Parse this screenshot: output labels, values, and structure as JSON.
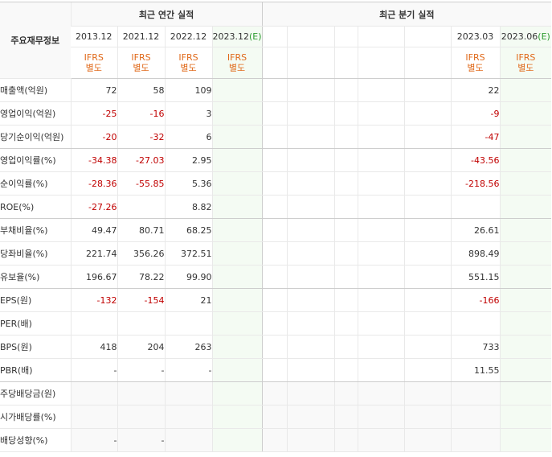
{
  "table": {
    "item_header": "주요재무정보",
    "annual_header": "최근 연간 실적",
    "quarter_header": "최근 분기 실적",
    "annual_dates": [
      "2013.12",
      "2021.12",
      "2022.12",
      "2023.12"
    ],
    "estimate_mark": "(E)",
    "quarter_dates": [
      "",
      "",
      "",
      "",
      "",
      "2023.03",
      "2023.06"
    ],
    "ifrs_line1": "IFRS",
    "ifrs_line2": "별도",
    "rows": [
      {
        "label": "매출액(억원)",
        "annual": [
          "72",
          "58",
          "109",
          ""
        ],
        "quarter": [
          "",
          "",
          "",
          "",
          "",
          "22",
          ""
        ]
      },
      {
        "label": "영업이익(억원)",
        "annual": [
          "-25",
          "-16",
          "3",
          ""
        ],
        "quarter": [
          "",
          "",
          "",
          "",
          "",
          "-9",
          ""
        ]
      },
      {
        "label": "당기순이익(억원)",
        "annual": [
          "-20",
          "-32",
          "6",
          ""
        ],
        "quarter": [
          "",
          "",
          "",
          "",
          "",
          "-47",
          ""
        ]
      },
      {
        "label": "영업이익률(%)",
        "annual": [
          "-34.38",
          "-27.03",
          "2.95",
          ""
        ],
        "quarter": [
          "",
          "",
          "",
          "",
          "",
          "-43.56",
          ""
        ]
      },
      {
        "label": "순이익률(%)",
        "annual": [
          "-28.36",
          "-55.85",
          "5.36",
          ""
        ],
        "quarter": [
          "",
          "",
          "",
          "",
          "",
          "-218.56",
          ""
        ]
      },
      {
        "label": "ROE(%)",
        "annual": [
          "-27.26",
          "",
          "8.82",
          ""
        ],
        "quarter": [
          "",
          "",
          "",
          "",
          "",
          "",
          ""
        ]
      },
      {
        "label": "부채비율(%)",
        "annual": [
          "49.47",
          "80.71",
          "68.25",
          ""
        ],
        "quarter": [
          "",
          "",
          "",
          "",
          "",
          "26.61",
          ""
        ]
      },
      {
        "label": "당좌비율(%)",
        "annual": [
          "221.74",
          "356.26",
          "372.51",
          ""
        ],
        "quarter": [
          "",
          "",
          "",
          "",
          "",
          "898.49",
          ""
        ]
      },
      {
        "label": "유보율(%)",
        "annual": [
          "196.67",
          "78.22",
          "99.90",
          ""
        ],
        "quarter": [
          "",
          "",
          "",
          "",
          "",
          "551.15",
          ""
        ]
      },
      {
        "label": "EPS(원)",
        "annual": [
          "-132",
          "-154",
          "21",
          ""
        ],
        "quarter": [
          "",
          "",
          "",
          "",
          "",
          "-166",
          ""
        ]
      },
      {
        "label": "PER(배)",
        "annual": [
          "",
          "",
          "",
          ""
        ],
        "quarter": [
          "",
          "",
          "",
          "",
          "",
          "",
          ""
        ]
      },
      {
        "label": "BPS(원)",
        "annual": [
          "418",
          "204",
          "263",
          ""
        ],
        "quarter": [
          "",
          "",
          "",
          "",
          "",
          "733",
          ""
        ]
      },
      {
        "label": "PBR(배)",
        "annual": [
          "-",
          "-",
          "-",
          ""
        ],
        "quarter": [
          "",
          "",
          "",
          "",
          "",
          "11.55",
          ""
        ]
      },
      {
        "label": "주당배당금(원)",
        "annual": [
          "",
          "",
          "",
          ""
        ],
        "quarter": [
          "",
          "",
          "",
          "",
          "",
          "",
          ""
        ]
      },
      {
        "label": "시가배당률(%)",
        "annual": [
          "",
          "",
          "",
          ""
        ],
        "quarter": [
          "",
          "",
          "",
          "",
          "",
          "",
          ""
        ]
      },
      {
        "label": "배당성향(%)",
        "annual": [
          "-",
          "-",
          "",
          ""
        ],
        "quarter": [
          "",
          "",
          "",
          "",
          "",
          "",
          ""
        ]
      }
    ],
    "colors": {
      "negative": "#c00000",
      "ifrs": "#e0691a",
      "estimate_bg": "#f4fbf3",
      "estimate_mark": "#2c9b2f",
      "grey_bg": "#f9f9f9"
    }
  }
}
